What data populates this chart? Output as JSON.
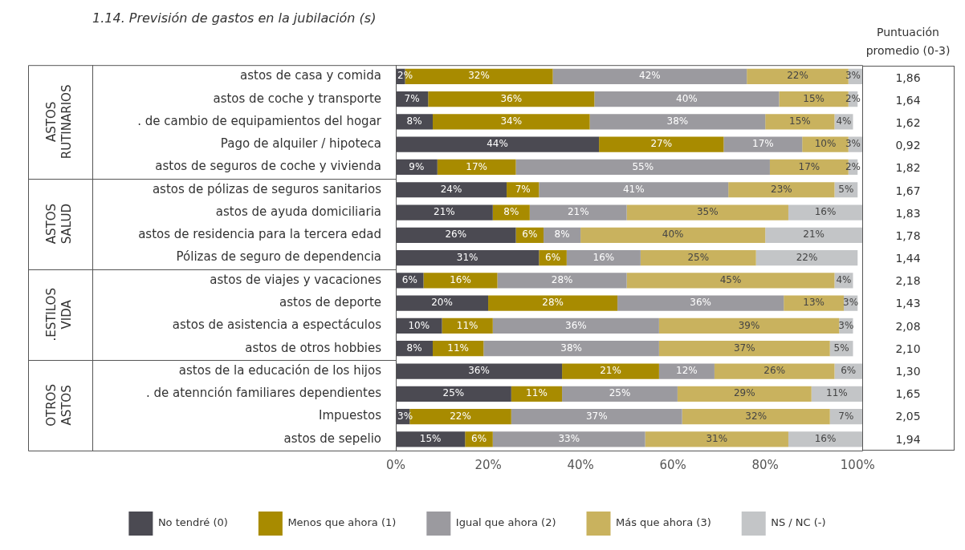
{
  "chart_data": {
    "type": "bar",
    "orientation": "horizontal",
    "stacked": true,
    "title": "1.14. Previsión de gastos en la jubilación (s)",
    "categories": [
      "astos de casa y comida",
      "astos de coche y transporte",
      ". de cambio de equipamientos del hogar",
      "Pago de alquiler / hipoteca",
      "astos de seguros de coche y vivienda",
      "astos de pólizas de seguros sanitarios",
      "astos de ayuda domiciliaria",
      "astos de residencia para la tercera edad",
      "Pólizas de seguro de dependencia",
      "astos de viajes y vacaciones",
      "astos de deporte",
      "astos de asistencia a espectáculos",
      "astos de otros hobbies",
      "astos de la educación de los hijos",
      ". de atennción familiares dependientes",
      "Impuestos",
      "astos de sepelio"
    ],
    "series": [
      {
        "name": "No tendré (0)",
        "color": "#4b4a52",
        "values": [
          2,
          7,
          8,
          44,
          9,
          24,
          21,
          26,
          31,
          6,
          20,
          10,
          8,
          36,
          25,
          3,
          15
        ],
        "value_labels": [
          "2%",
          "7%",
          "8%",
          "44%",
          "9%",
          "24%",
          "21%",
          "26%",
          "31%",
          "6%",
          "20%",
          "10%",
          "8%",
          "36%",
          "25%",
          "3%",
          "15%"
        ]
      },
      {
        "name": "Menos que ahora (1)",
        "color": "#a88b00",
        "values": [
          32,
          36,
          34,
          27,
          17,
          7,
          8,
          6,
          6,
          16,
          28,
          11,
          11,
          21,
          11,
          22,
          6
        ],
        "value_labels": [
          "32%",
          "36%",
          "34%",
          "27%",
          "17%",
          "7%",
          "8%",
          "6%",
          "6%",
          "16%",
          "28%",
          "11%",
          "11%",
          "21%",
          "11%",
          "22%",
          "6%"
        ]
      },
      {
        "name": "Igual que ahora (2)",
        "color": "#9b9a9f",
        "values": [
          42,
          40,
          38,
          17,
          55,
          41,
          21,
          8,
          16,
          28,
          36,
          36,
          38,
          12,
          25,
          37,
          33
        ],
        "value_labels": [
          "42%",
          "40%",
          "38%",
          "17%",
          "55%",
          "41%",
          "21%",
          "8%",
          "16%",
          "28%",
          "36%",
          "36%",
          "38%",
          "12%",
          "25%",
          "37%",
          "33%"
        ]
      },
      {
        "name": "Más que ahora (3)",
        "color": "#c9b25e",
        "values": [
          22,
          15,
          15,
          10,
          17,
          23,
          35,
          40,
          25,
          45,
          13,
          39,
          37,
          26,
          29,
          32,
          31
        ],
        "value_labels": [
          "22%",
          "15%",
          "15%",
          "10%",
          "17%",
          "23%",
          "35%",
          "40%",
          "25%",
          "45%",
          "13%",
          "39%",
          "37%",
          "26%",
          "29%",
          "32%",
          "31%"
        ]
      },
      {
        "name": "NS / NC (-)",
        "color": "#c3c5c7",
        "values": [
          3,
          2,
          4,
          3,
          2,
          5,
          16,
          21,
          22,
          4,
          3,
          3,
          5,
          6,
          11,
          7,
          16
        ],
        "value_labels": [
          "3%",
          "2%",
          "4%",
          "3%",
          "2%",
          "5%",
          "16%",
          "21%",
          "22%",
          "4%",
          "3%",
          "3%",
          "5%",
          "6%",
          "11%",
          "7%",
          "16%"
        ]
      }
    ],
    "xlim": [
      0,
      101
    ],
    "xticks": [
      {
        "value": 0,
        "label": "0%"
      },
      {
        "value": 20,
        "label": "20%"
      },
      {
        "value": 40,
        "label": "40%"
      },
      {
        "value": 60,
        "label": "60%"
      },
      {
        "value": 80,
        "label": "80%"
      },
      {
        "value": 100,
        "label": "100%"
      }
    ],
    "grid": false,
    "legend": "bottom",
    "annotations": [
      "Puntuación promedio (0-3)",
      "1,86",
      "1,64",
      "1,62",
      "0,92",
      "1,82",
      "1,67",
      "1,83",
      "1,78",
      "1,44",
      "2,18",
      "1,43",
      "2,08",
      "2,10",
      "1,30",
      "1,65",
      "2,05",
      "1,94",
      "ASTOS RUTINARIOS",
      "ASTOS SALUD",
      ".ESTILOS VIDA",
      "OTROS ASTOS"
    ]
  }
}
